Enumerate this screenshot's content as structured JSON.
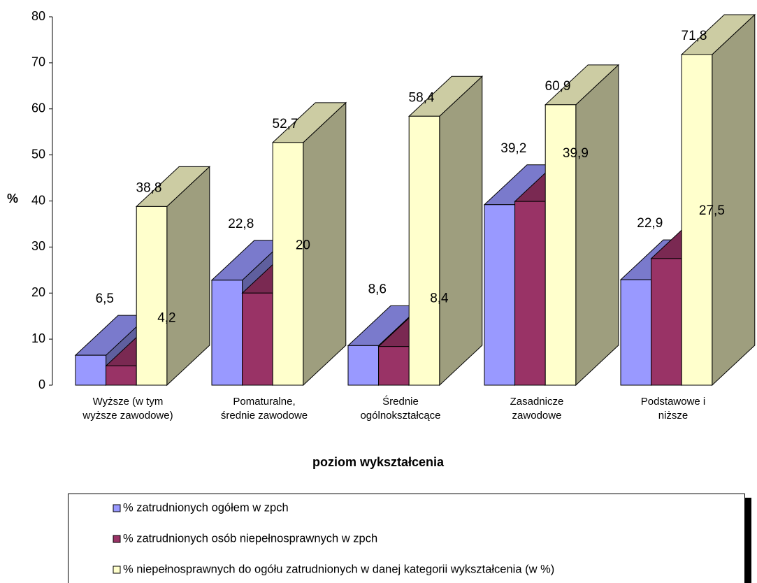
{
  "chart_data": {
    "type": "bar3d",
    "categories": [
      "Wyższe (w tym\nwyższe zawodowe)",
      "Pomaturalne,\nśrednie zawodowe",
      "Średnie\nogólnokształcące",
      "Zasadnicze\nzawodowe",
      "Podstawowe i\nniższe"
    ],
    "series": [
      {
        "name": "% zatrudnionych  ogółem w zpch",
        "color": "#9999ff",
        "values": [
          6.5,
          22.8,
          8.6,
          39.2,
          22.9
        ],
        "value_labels": [
          "6,5",
          "22,8",
          "8,6",
          "39,2",
          "22,9"
        ]
      },
      {
        "name": "% zatrudnionych osób niepełnosprawnych w zpch",
        "color": "#993366",
        "values": [
          4.2,
          20,
          8.4,
          39.9,
          27.5
        ],
        "value_labels": [
          "4,2",
          "20",
          "8,4",
          "39,9",
          "27,5"
        ]
      },
      {
        "name": "% niepełnosprawnych do ogółu zatrudnionych w danej kategorii wykształcenia (w %)",
        "color": "#ffffcc",
        "values": [
          38.8,
          52.7,
          58.4,
          60.9,
          71.8
        ],
        "value_labels": [
          "38,8",
          "52,7",
          "58,4",
          "60,9",
          "71,8"
        ]
      }
    ],
    "ylabel": "%",
    "xlabel": "poziom wykształcenia",
    "ylim": [
      0,
      80
    ],
    "yticks": [
      0,
      10,
      20,
      30,
      40,
      50,
      60,
      70,
      80
    ],
    "legend": "bottom"
  }
}
